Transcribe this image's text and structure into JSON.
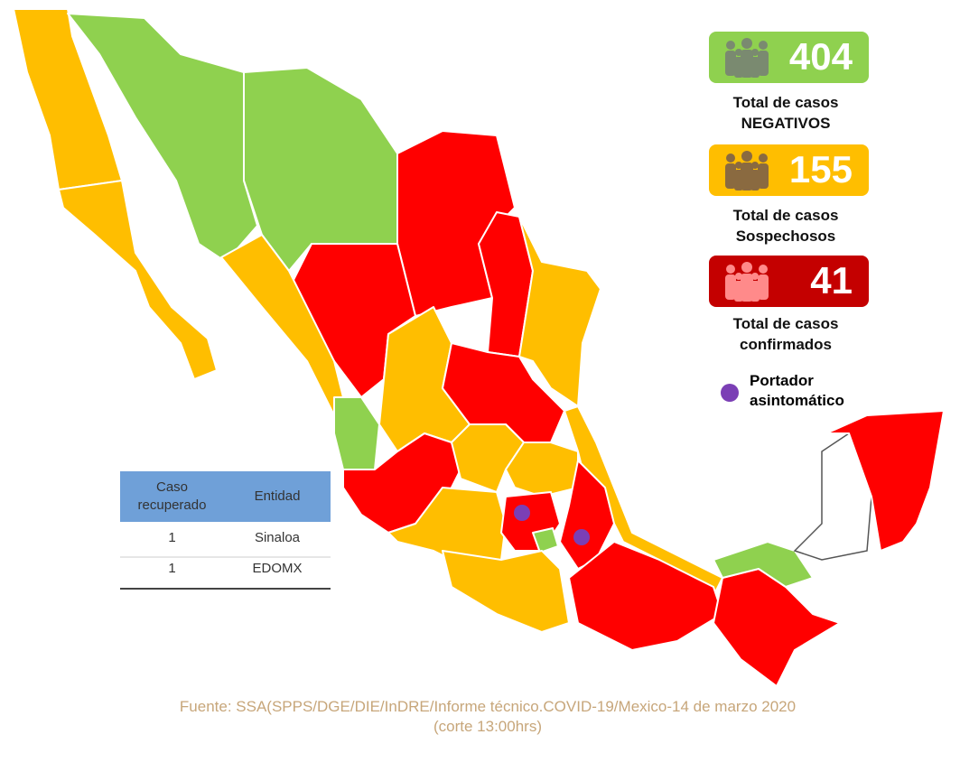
{
  "legend": [
    {
      "count": "404",
      "label": [
        "Total de casos",
        "NEGATIVOS"
      ]
    },
    {
      "count": "155",
      "label": [
        "Total de casos",
        "Sospechosos"
      ]
    },
    {
      "count": "41",
      "label": [
        "Total de casos",
        "confirmados"
      ]
    }
  ],
  "carrier": [
    "Portador",
    "asintomático"
  ],
  "table": {
    "header": [
      "Caso recuperado",
      "Entidad"
    ],
    "rows": [
      [
        "1",
        "Sinaloa"
      ],
      [
        "1",
        "EDOMX"
      ]
    ]
  },
  "footer": [
    "Fuente: SSA(SPPS/DGE/DIE/InDRE/Informe técnico.COVID-19/Mexico-14 de marzo 2020",
    "(corte 13:00hrs)"
  ]
}
